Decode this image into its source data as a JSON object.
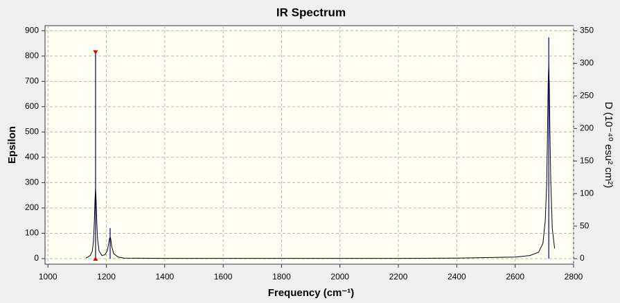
{
  "chart_data": {
    "type": "line",
    "title": "IR Spectrum",
    "xlabel": "Frequency (cm⁻¹)",
    "ylabel": "Epsilon",
    "y2label": "D (10⁻⁴⁰ esu² cm²)",
    "xlim": [
      990,
      2800
    ],
    "xticks": [
      1000,
      1200,
      1400,
      1600,
      1800,
      2000,
      2200,
      2400,
      2600,
      2800
    ],
    "ylim": [
      -22,
      920
    ],
    "yticks": [
      0,
      100,
      200,
      300,
      400,
      500,
      600,
      700,
      800,
      900
    ],
    "y2lim": [
      -8.5,
      358
    ],
    "y2ticks": [
      0,
      50,
      100,
      150,
      200,
      250,
      300,
      350
    ],
    "grid": true,
    "series": [
      {
        "color": "#000000",
        "x": [
          1130,
          1145,
          1152,
          1156,
          1159,
          1161,
          1163,
          1165,
          1167,
          1170,
          1175,
          1185,
          1195,
          1203,
          1208,
          1211,
          1213,
          1215,
          1218,
          1225,
          1240,
          1260,
          1400,
          1600,
          1800,
          2000,
          2200,
          2400,
          2600,
          2650,
          2680,
          2695,
          2703,
          2708,
          2711,
          2713,
          2715,
          2717,
          2719,
          2722,
          2727,
          2735
        ],
        "values": [
          2,
          12,
          30,
          70,
          150,
          230,
          280,
          230,
          150,
          75,
          30,
          12,
          15,
          30,
          60,
          80,
          85,
          78,
          50,
          20,
          6,
          2,
          1,
          1,
          1,
          1,
          1,
          2,
          6,
          12,
          25,
          60,
          150,
          300,
          520,
          700,
          765,
          680,
          500,
          300,
          120,
          40
        ]
      },
      {
        "color": "#000080",
        "axis": "y2",
        "style": "stick",
        "x": [
          1163,
          1213,
          2715
        ],
        "values": [
          317,
          47,
          340
        ]
      }
    ]
  }
}
